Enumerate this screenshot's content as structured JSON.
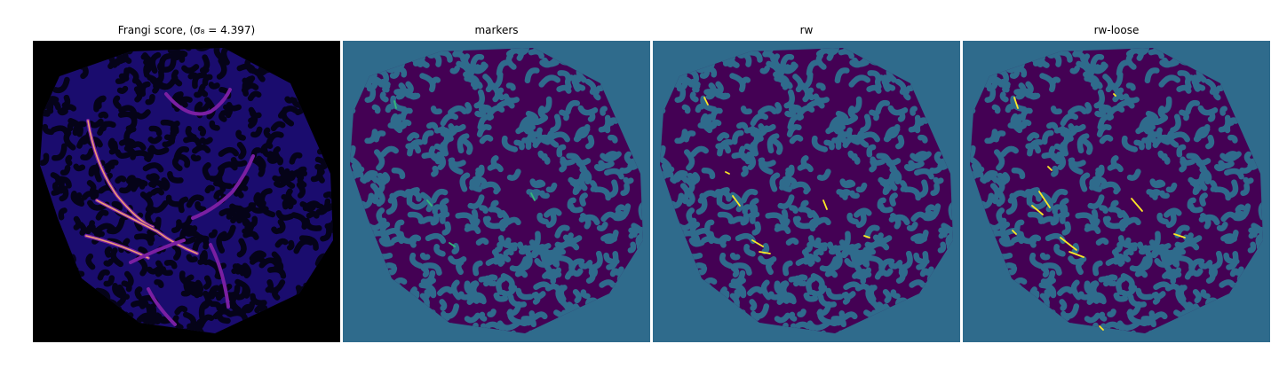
{
  "figure": {
    "panels": [
      {
        "title": "Frangi score, (σ₈ = 4.397)",
        "kind": "frangi"
      },
      {
        "title": "markers",
        "kind": "markers"
      },
      {
        "title": "rw",
        "kind": "rw"
      },
      {
        "title": "rw-loose",
        "kind": "rw-loose"
      }
    ]
  },
  "colors": {
    "frangi_background": "#000000",
    "frangi_low": "#1a0c6e",
    "frangi_mid": "#7a1fa2",
    "frangi_high": "#f0a070",
    "label_background": "#2f6b8c",
    "label_tissue": "#440154",
    "label_vessel": "#fde725",
    "label_marker": "#35b779"
  }
}
